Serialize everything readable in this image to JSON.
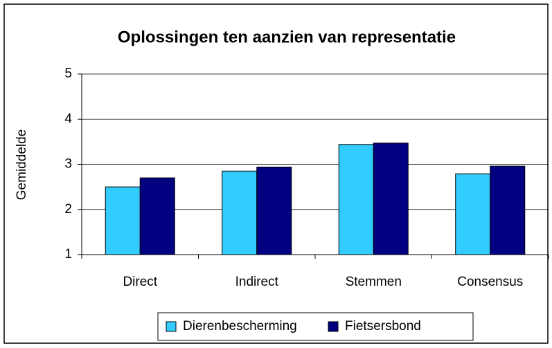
{
  "chart_data": {
    "type": "bar",
    "title": "Oplossingen ten aanzien van representatie",
    "y_label": "Gemiddelde",
    "categories": [
      "Direct",
      "Indirect",
      "Stemmen",
      "Consensus"
    ],
    "series": [
      {
        "name": "Dierenbescherming",
        "color": "#33ccff",
        "values": [
          2.5,
          2.85,
          3.44,
          2.79
        ]
      },
      {
        "name": "Fietsersbond",
        "color": "#000080",
        "values": [
          2.7,
          2.94,
          3.47,
          2.96
        ]
      }
    ],
    "ylim": [
      1,
      5
    ],
    "yticks": [
      1,
      2,
      3,
      4,
      5
    ],
    "grid": true,
    "legend": "bottom"
  }
}
